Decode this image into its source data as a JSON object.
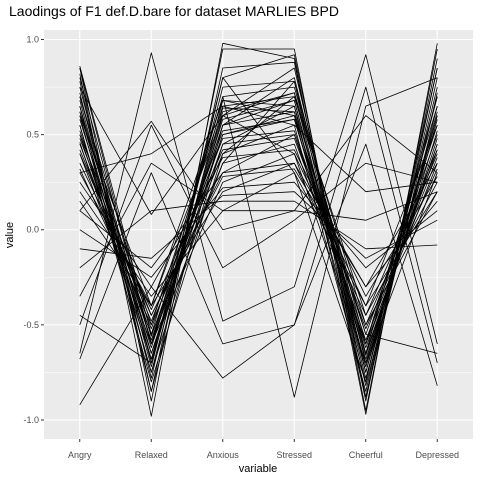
{
  "chart_data": {
    "type": "line",
    "title": "Laodings of F1 def.D.bare for dataset MARLIES BPD",
    "xlabel": "variable",
    "ylabel": "value",
    "categories": [
      "Angry",
      "Relaxed",
      "Anxious",
      "Stressed",
      "Cheerful",
      "Depressed"
    ],
    "ylim": [
      -1.1,
      1.05
    ],
    "yticks": [
      -1.0,
      -0.5,
      0.0,
      0.5,
      1.0
    ],
    "ytick_labels": [
      "-1.0",
      "-0.5",
      "0.0",
      "0.5",
      "1.0"
    ],
    "grid": true,
    "legend": "none",
    "colors": {
      "panel": "#ebebeb",
      "grid": "#ffffff",
      "line": "#000000",
      "tick_text": "#4d4d4d"
    },
    "series": [
      {
        "values": [
          0.86,
          -0.55,
          0.7,
          0.75,
          -0.6,
          0.55
        ]
      },
      {
        "values": [
          0.8,
          -0.6,
          0.55,
          0.8,
          -0.7,
          0.6
        ]
      },
      {
        "values": [
          0.75,
          -0.7,
          0.6,
          0.85,
          -0.75,
          0.7
        ]
      },
      {
        "values": [
          0.7,
          -0.5,
          0.65,
          0.7,
          -0.55,
          0.5
        ]
      },
      {
        "values": [
          0.65,
          -0.65,
          0.5,
          0.6,
          -0.8,
          0.75
        ]
      },
      {
        "values": [
          0.6,
          -0.75,
          0.45,
          0.65,
          -0.65,
          0.45
        ]
      },
      {
        "values": [
          0.55,
          -0.8,
          0.4,
          0.55,
          -0.85,
          0.8
        ]
      },
      {
        "values": [
          0.5,
          -0.45,
          0.3,
          0.5,
          -0.5,
          0.4
        ]
      },
      {
        "values": [
          0.45,
          -0.55,
          0.35,
          0.45,
          -0.6,
          0.35
        ]
      },
      {
        "values": [
          0.4,
          -0.6,
          0.25,
          0.4,
          -0.7,
          0.3
        ]
      },
      {
        "values": [
          0.3,
          -0.4,
          0.2,
          0.35,
          -0.45,
          0.25
        ]
      },
      {
        "values": [
          0.2,
          -0.35,
          0.1,
          0.3,
          -0.4,
          0.2
        ]
      },
      {
        "values": [
          0.85,
          -0.9,
          0.95,
          0.95,
          -0.95,
          0.95
        ]
      },
      {
        "values": [
          0.82,
          -0.98,
          0.98,
          0.9,
          -0.97,
          0.98
        ]
      },
      {
        "values": [
          0.78,
          -0.85,
          0.85,
          0.88,
          -0.9,
          0.9
        ]
      },
      {
        "values": [
          0.72,
          -0.78,
          0.8,
          0.92,
          -0.88,
          0.85
        ]
      },
      {
        "values": [
          0.68,
          -0.72,
          0.75,
          0.78,
          -0.82,
          0.65
        ]
      },
      {
        "values": [
          0.62,
          -0.68,
          0.62,
          0.72,
          -0.78,
          0.58
        ]
      },
      {
        "values": [
          0.58,
          -0.62,
          0.58,
          0.68,
          -0.72,
          0.52
        ]
      },
      {
        "values": [
          0.52,
          -0.58,
          0.55,
          0.62,
          -0.68,
          0.48
        ]
      },
      {
        "values": [
          0.48,
          -0.52,
          0.52,
          0.58,
          -0.62,
          0.42
        ]
      },
      {
        "values": [
          0.42,
          -0.48,
          0.48,
          0.52,
          -0.58,
          0.38
        ]
      },
      {
        "values": [
          0.35,
          -0.42,
          0.42,
          0.48,
          -0.52,
          0.32
        ]
      },
      {
        "values": [
          0.25,
          -0.3,
          0.38,
          0.42,
          -0.35,
          0.28
        ]
      },
      {
        "values": [
          0.1,
          -0.2,
          0.3,
          0.35,
          -0.3,
          0.15
        ]
      },
      {
        "values": [
          0.0,
          -0.25,
          0.22,
          0.25,
          -0.2,
          0.1
        ]
      },
      {
        "values": [
          -0.1,
          -0.15,
          0.18,
          0.2,
          -0.15,
          0.05
        ]
      },
      {
        "values": [
          -0.2,
          0.1,
          0.15,
          0.15,
          -0.1,
          -0.08
        ]
      },
      {
        "values": [
          -0.35,
          0.35,
          0.1,
          0.1,
          0.05,
          0.2
        ]
      },
      {
        "values": [
          -0.5,
          0.55,
          -0.2,
          0.05,
          0.35,
          0.25
        ]
      },
      {
        "values": [
          -0.65,
          0.93,
          -0.48,
          -0.3,
          0.92,
          -0.6
        ]
      },
      {
        "values": [
          -0.68,
          0.3,
          -0.6,
          -0.5,
          0.75,
          -0.7
        ]
      },
      {
        "values": [
          -0.92,
          -0.3,
          -0.78,
          -0.5,
          0.45,
          -0.82
        ]
      },
      {
        "values": [
          0.1,
          0.57,
          0.0,
          0.1,
          0.6,
          0.3
        ]
      },
      {
        "values": [
          0.3,
          0.4,
          0.65,
          0.55,
          0.2,
          0.25
        ]
      },
      {
        "values": [
          0.85,
          -0.6,
          0.7,
          -0.88,
          0.65,
          0.8
        ]
      },
      {
        "values": [
          0.75,
          0.08,
          0.6,
          0.4,
          -0.4,
          0.55
        ]
      },
      {
        "values": [
          0.6,
          -0.4,
          0.68,
          0.6,
          -0.55,
          -0.65
        ]
      },
      {
        "values": [
          0.5,
          -0.65,
          0.35,
          0.78,
          -0.65,
          0.7
        ]
      },
      {
        "values": [
          0.4,
          -0.45,
          0.28,
          0.32,
          -0.3,
          0.35
        ]
      },
      {
        "values": [
          0.65,
          -0.85,
          0.55,
          0.68,
          -0.75,
          0.6
        ]
      },
      {
        "values": [
          0.7,
          -0.6,
          0.45,
          0.5,
          -0.6,
          0.65
        ]
      },
      {
        "values": [
          0.15,
          -0.4,
          0.6,
          0.72,
          -0.5,
          0.2
        ]
      },
      {
        "values": [
          -0.45,
          -0.7,
          0.8,
          0.3,
          -0.8,
          0.85
        ]
      },
      {
        "values": [
          0.55,
          -0.75,
          0.68,
          0.65,
          -0.88,
          0.72
        ]
      },
      {
        "values": [
          0.62,
          -0.56,
          0.5,
          0.58,
          -0.66,
          0.45
        ]
      },
      {
        "values": [
          0.32,
          -0.5,
          0.4,
          0.7,
          -0.45,
          0.42
        ]
      },
      {
        "values": [
          0.46,
          -0.68,
          0.64,
          0.62,
          -0.72,
          0.62
        ]
      }
    ]
  }
}
